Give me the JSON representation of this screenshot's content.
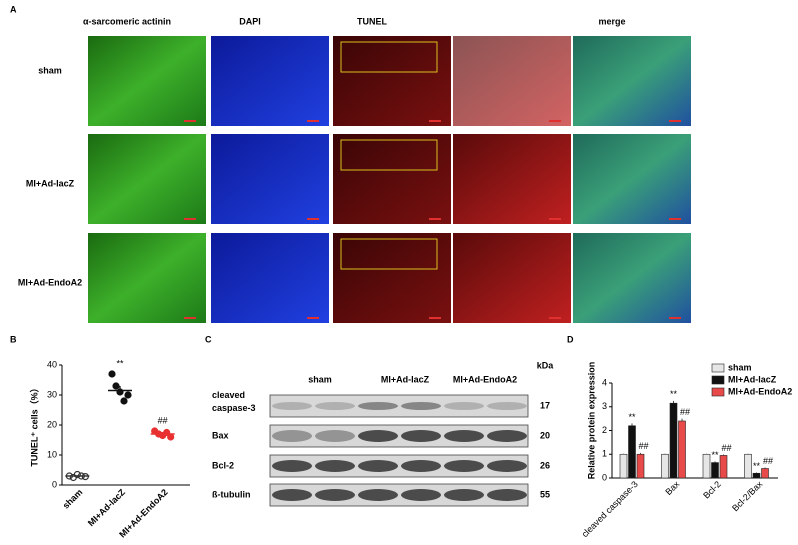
{
  "panel_a": {
    "label": "A",
    "columns": [
      "α-sarcomeric actinin",
      "DAPI",
      "TUNEL",
      "merge"
    ],
    "rows": [
      "sham",
      "MI+Ad-lacZ",
      "MI+Ad-EndoA2"
    ]
  },
  "panel_c": {
    "label": "C",
    "unit": "kDa",
    "groups": [
      "sham",
      "MI+Ad-lacZ",
      "MI+Ad-EndoA2"
    ],
    "bands": [
      {
        "name": "cleaved caspase-3",
        "kda": "17"
      },
      {
        "name": "Bax",
        "kda": "20"
      },
      {
        "name": "Bcl-2",
        "kda": "26"
      },
      {
        "name": "ß-tubulin",
        "kda": "55"
      }
    ]
  },
  "chart_data": [
    {
      "type": "dot",
      "panel": "B",
      "y_label": "TUNEL⁺ cells（%）",
      "categories": [
        "sham",
        "MI+Ad-lacZ",
        "MI+Ad-EndoA2"
      ],
      "points": [
        [
          3,
          2.5,
          3.5,
          3,
          2.8
        ],
        [
          37,
          33,
          31,
          28,
          30
        ],
        [
          18,
          17,
          16.5,
          17.5,
          16
        ]
      ],
      "means": [
        3,
        31.5,
        17
      ],
      "errors": [
        0.3,
        1.5,
        0.5
      ],
      "colors": [
        "#333333",
        "#111111",
        "#e83030"
      ],
      "annotations": [
        null,
        "**",
        "##"
      ],
      "ylim": [
        0,
        40
      ],
      "yticks": [
        0,
        10,
        20,
        30,
        40
      ]
    },
    {
      "type": "bar",
      "panel": "D",
      "y_label": "Relative protein expression",
      "categories": [
        "cleaved caspase-3",
        "Bax",
        "Bcl-2",
        "Bcl-2/Bax"
      ],
      "series": [
        {
          "name": "sham",
          "color": "#e6e6e6",
          "values": [
            1,
            1,
            1,
            1
          ],
          "errors": [
            0.02,
            0.02,
            0.02,
            0.02
          ],
          "annotations": [
            null,
            null,
            null,
            null
          ]
        },
        {
          "name": "MI+Ad-lacZ",
          "color": "#111111",
          "values": [
            2.2,
            3.15,
            0.65,
            0.2
          ],
          "errors": [
            0.1,
            0.1,
            0.05,
            0.03
          ],
          "annotations": [
            "**",
            "**",
            "**",
            "**"
          ]
        },
        {
          "name": "MI+Ad-EndoA2",
          "color": "#e84a4a",
          "values": [
            1.0,
            2.4,
            0.95,
            0.4
          ],
          "errors": [
            0.06,
            0.1,
            0.04,
            0.04
          ],
          "annotations": [
            "##",
            "##",
            "##",
            "##"
          ]
        }
      ],
      "ylim": [
        0,
        4
      ],
      "yticks": [
        0,
        1,
        2,
        3,
        4
      ],
      "legend": "top-right"
    }
  ]
}
